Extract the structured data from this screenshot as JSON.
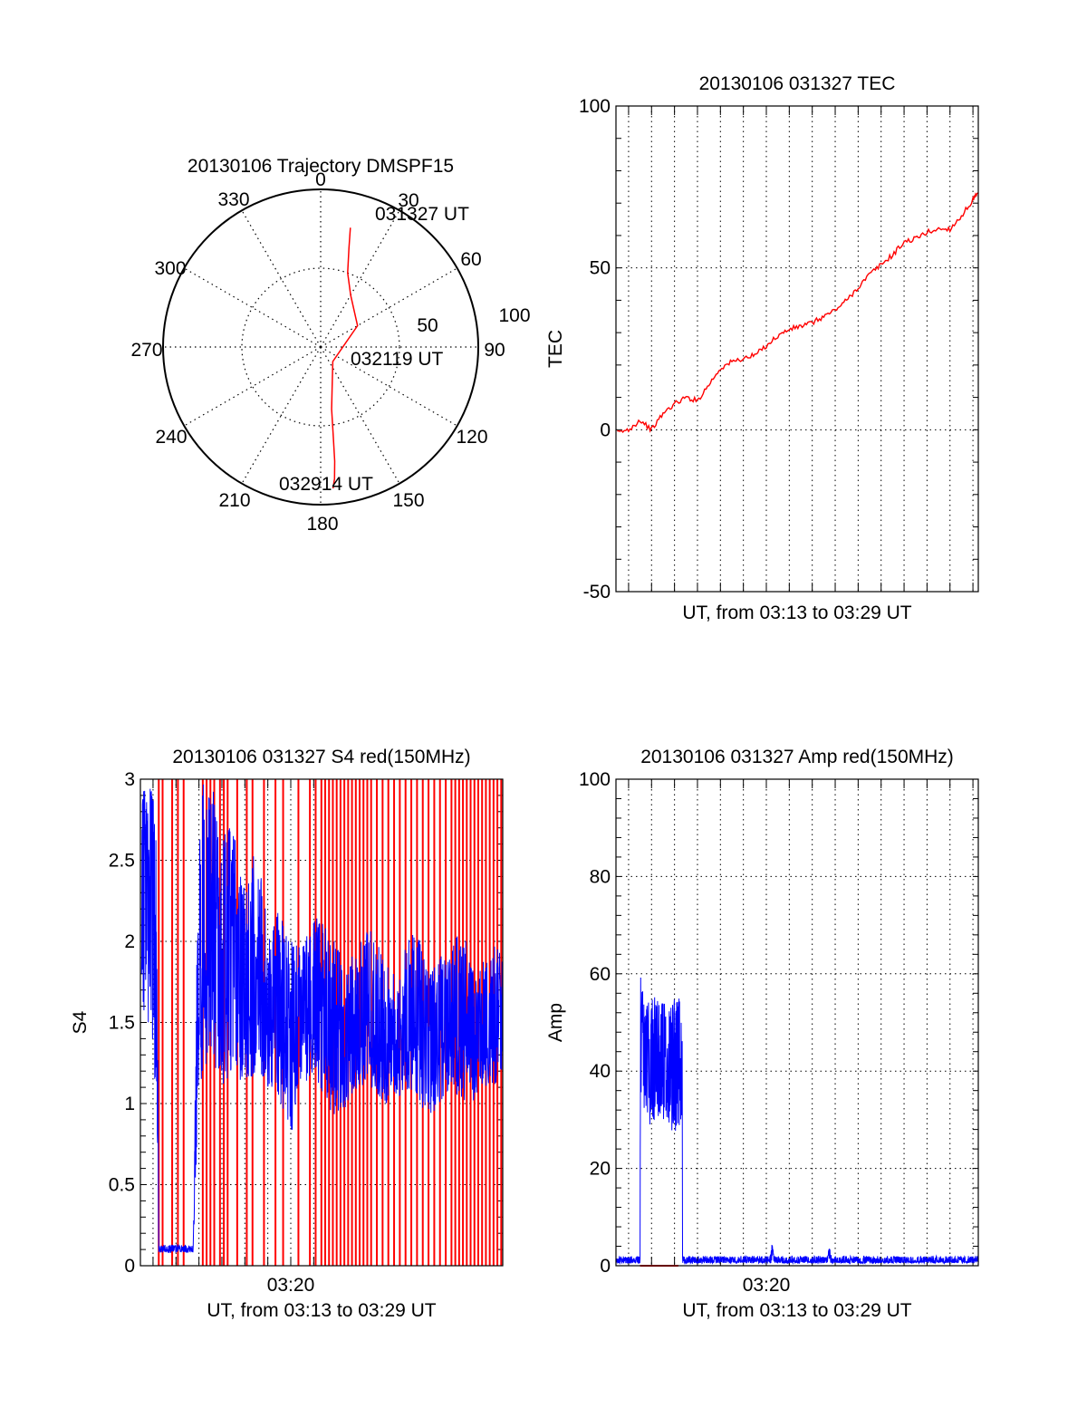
{
  "colors": {
    "red": "#ff0000",
    "blue": "#0000ff",
    "grid": "#000000",
    "axis": "#000000"
  },
  "chart_data": [
    {
      "id": "trajectory",
      "type": "polar-line",
      "title": "20130106 Trajectory DMSPF15",
      "angle_labels": [
        "0",
        "30",
        "60",
        "90",
        "120",
        "150",
        "180",
        "210",
        "240",
        "270",
        "300",
        "330"
      ],
      "radius_labels": [
        "50",
        "100"
      ],
      "rlim": [
        0,
        100
      ],
      "grid": true,
      "series": [
        {
          "color": "#ff0000",
          "points": [
            [
              14,
              78
            ],
            [
              16,
              65
            ],
            [
              20,
              50
            ],
            [
              30,
              38
            ],
            [
              60,
              27
            ],
            [
              140,
              12
            ],
            [
              165,
              28
            ],
            [
              170,
              40
            ],
            [
              172,
              58
            ],
            [
              173,
              73
            ],
            [
              174,
              84
            ],
            [
              175,
              90
            ]
          ]
        }
      ],
      "annotations": [
        {
          "text": "031327 UT",
          "az": 15,
          "r": 78
        },
        {
          "text": "032119 UT",
          "az": 80,
          "r": 12
        },
        {
          "text": "032914 UT",
          "az": 175,
          "r": 88
        }
      ]
    },
    {
      "id": "tec",
      "type": "line",
      "title": "20130106 031327 TEC",
      "xlabel": "UT, from 03:13 to 03:29 UT",
      "ylabel": "TEC",
      "xlim": [
        "03:13:27",
        "03:29:14"
      ],
      "ylim": [
        -50,
        100
      ],
      "yticks": [
        -50,
        0,
        50,
        100
      ],
      "grid": true,
      "series": [
        {
          "color": "#ff0000",
          "x": [
            "03:13:30",
            "03:14:00",
            "03:14:30",
            "03:15:00",
            "03:15:30",
            "03:16:00",
            "03:16:30",
            "03:17:00",
            "03:17:30",
            "03:18:00",
            "03:18:30",
            "03:19:00",
            "03:19:30",
            "03:20:00",
            "03:20:30",
            "03:21:00",
            "03:21:30",
            "03:22:00",
            "03:22:30",
            "03:23:00",
            "03:23:30",
            "03:24:00",
            "03:24:30",
            "03:25:00",
            "03:25:30",
            "03:26:00",
            "03:26:30",
            "03:27:00",
            "03:27:30",
            "03:28:00",
            "03:28:30",
            "03:29:00",
            "03:29:14"
          ],
          "y": [
            -1,
            0,
            3,
            0,
            5,
            8,
            10,
            9,
            14,
            19,
            21,
            22,
            23,
            26,
            29,
            31,
            32,
            33,
            35,
            37,
            40,
            44,
            48,
            51,
            54,
            58,
            59,
            61,
            62,
            62,
            66,
            71,
            73
          ]
        }
      ]
    },
    {
      "id": "s4",
      "type": "line",
      "title": "20130106 031327 S4 red(150MHz)",
      "xlabel": "UT, from 03:13 to 03:29 UT",
      "ylabel": "S4",
      "xlim": [
        "03:13:27",
        "03:29:14"
      ],
      "ylim": [
        0,
        3
      ],
      "yticks": [
        0,
        0.5,
        1,
        1.5,
        2,
        2.5,
        3
      ],
      "xticks": [
        "03:20"
      ],
      "grid": true,
      "series": [
        {
          "color": "#ff0000",
          "x_spikes": [
            "03:14:15",
            "03:14:25",
            "03:14:50",
            "03:15:05",
            "03:15:20",
            "03:16:10",
            "03:16:20",
            "03:16:30",
            "03:16:40",
            "03:16:55",
            "03:17:05",
            "03:17:15",
            "03:17:40",
            "03:18:05",
            "03:18:20",
            "03:18:50",
            "03:19:20",
            "03:19:40",
            "03:20:20",
            "03:20:50",
            "03:21:05",
            "03:21:20",
            "03:21:30",
            "03:21:40",
            "03:21:50",
            "03:22:00",
            "03:22:10",
            "03:22:20",
            "03:22:30",
            "03:22:40",
            "03:22:50",
            "03:23:00",
            "03:23:10",
            "03:23:20",
            "03:23:30",
            "03:23:45",
            "03:24:00",
            "03:24:15",
            "03:24:30",
            "03:24:45",
            "03:25:00",
            "03:25:15",
            "03:25:30",
            "03:25:45",
            "03:26:00",
            "03:26:15",
            "03:26:30",
            "03:26:45",
            "03:27:00",
            "03:27:10",
            "03:27:20",
            "03:27:30",
            "03:27:40",
            "03:27:50",
            "03:28:00",
            "03:28:10",
            "03:28:20",
            "03:28:30",
            "03:28:40",
            "03:28:50",
            "03:29:00",
            "03:29:10"
          ]
        },
        {
          "color": "#0000ff",
          "x": [
            "03:13:30",
            "03:13:45",
            "03:14:00",
            "03:14:10",
            "03:14:15",
            "03:14:30",
            "03:15:00",
            "03:15:30",
            "03:15:45",
            "03:16:00",
            "03:16:30",
            "03:17:00",
            "03:17:30",
            "03:18:00",
            "03:18:30",
            "03:19:00",
            "03:19:30",
            "03:20:00",
            "03:20:30",
            "03:21:00",
            "03:21:30",
            "03:22:00",
            "03:22:30",
            "03:23:00",
            "03:23:30",
            "03:24:00",
            "03:24:30",
            "03:25:00",
            "03:25:30",
            "03:26:00",
            "03:26:30",
            "03:27:00",
            "03:27:30",
            "03:28:00",
            "03:28:30",
            "03:29:00",
            "03:29:14"
          ],
          "y": [
            2.1,
            2.6,
            1.9,
            1.3,
            0.1,
            0.1,
            0.1,
            0.1,
            0.1,
            1.8,
            2.1,
            1.7,
            1.8,
            1.6,
            1.7,
            1.5,
            1.6,
            1.4,
            1.5,
            1.6,
            1.5,
            1.4,
            1.3,
            1.4,
            1.5,
            1.4,
            1.3,
            1.4,
            1.5,
            1.3,
            1.4,
            1.4,
            1.5,
            1.3,
            1.4,
            1.5,
            1.4
          ],
          "envelope_low": [
            1.4,
            1.5,
            1.3,
            0.9,
            0.08,
            0.08,
            0.08,
            0.08,
            0.08,
            1.1,
            1.3,
            1.1,
            1.2,
            1.1,
            1.2,
            1.1,
            1.0,
            0.8,
            1.1,
            1.2,
            1.0,
            0.9,
            1.0,
            1.1,
            1.1,
            1.0,
            1.0,
            1.1,
            1.0,
            0.9,
            1.0,
            1.1,
            1.0,
            1.0,
            1.1,
            1.1,
            1.1
          ],
          "envelope_high": [
            3.0,
            3.0,
            3.0,
            2.5,
            0.13,
            0.13,
            0.13,
            0.13,
            0.13,
            3.0,
            3.0,
            2.7,
            2.7,
            2.3,
            2.6,
            2.1,
            2.2,
            2.0,
            2.0,
            2.2,
            2.1,
            2.0,
            1.9,
            2.0,
            2.1,
            1.9,
            1.8,
            2.0,
            2.1,
            1.8,
            1.9,
            2.0,
            2.1,
            1.8,
            1.9,
            2.0,
            1.9
          ]
        }
      ]
    },
    {
      "id": "amp",
      "type": "line",
      "title": "20130106 031327 Amp red(150MHz)",
      "xlabel": "UT, from 03:13 to 03:29 UT",
      "ylabel": "Amp",
      "xlim": [
        "03:13:27",
        "03:29:14"
      ],
      "ylim": [
        0,
        100
      ],
      "yticks": [
        0,
        20,
        40,
        60,
        80,
        100
      ],
      "xticks": [
        "03:20"
      ],
      "grid": true,
      "series": [
        {
          "color": "#ff0000",
          "x": [
            "03:14:30",
            "03:16:10"
          ],
          "y": [
            0,
            0
          ]
        },
        {
          "color": "#0000ff",
          "x": [
            "03:13:27",
            "03:14:30",
            "03:14:31",
            "03:14:40",
            "03:15:00",
            "03:15:30",
            "03:16:00",
            "03:16:20",
            "03:16:21",
            "03:17:00",
            "03:18:00",
            "03:19:00",
            "03:20:00",
            "03:20:10",
            "03:20:15",
            "03:20:20",
            "03:21:00",
            "03:22:00",
            "03:22:40",
            "03:22:45",
            "03:22:50",
            "03:24:00",
            "03:25:00",
            "03:26:00",
            "03:27:00",
            "03:28:00",
            "03:29:14"
          ],
          "y": [
            1,
            1,
            44,
            46,
            43,
            42,
            44,
            42,
            1,
            1,
            1,
            1,
            1,
            1,
            4,
            1,
            1,
            1,
            1,
            3,
            1,
            1,
            1,
            1,
            1,
            1,
            1
          ],
          "envelope_low": [
            0.5,
            0.5,
            30,
            32,
            28,
            30,
            27,
            30,
            0.5,
            0.5,
            0.5,
            0.5,
            0.5,
            0.5,
            0.5,
            0.5,
            0.5,
            0.5,
            0.5,
            0.5,
            0.5,
            0.5,
            0.5,
            0.5,
            0.5,
            0.5,
            0.5
          ],
          "envelope_high": [
            2,
            2,
            60,
            55,
            56,
            54,
            55,
            55,
            2,
            2,
            2,
            2,
            2,
            2,
            5,
            2,
            2,
            2,
            2,
            4,
            2,
            2,
            2,
            2,
            2,
            2,
            2
          ]
        }
      ]
    }
  ]
}
